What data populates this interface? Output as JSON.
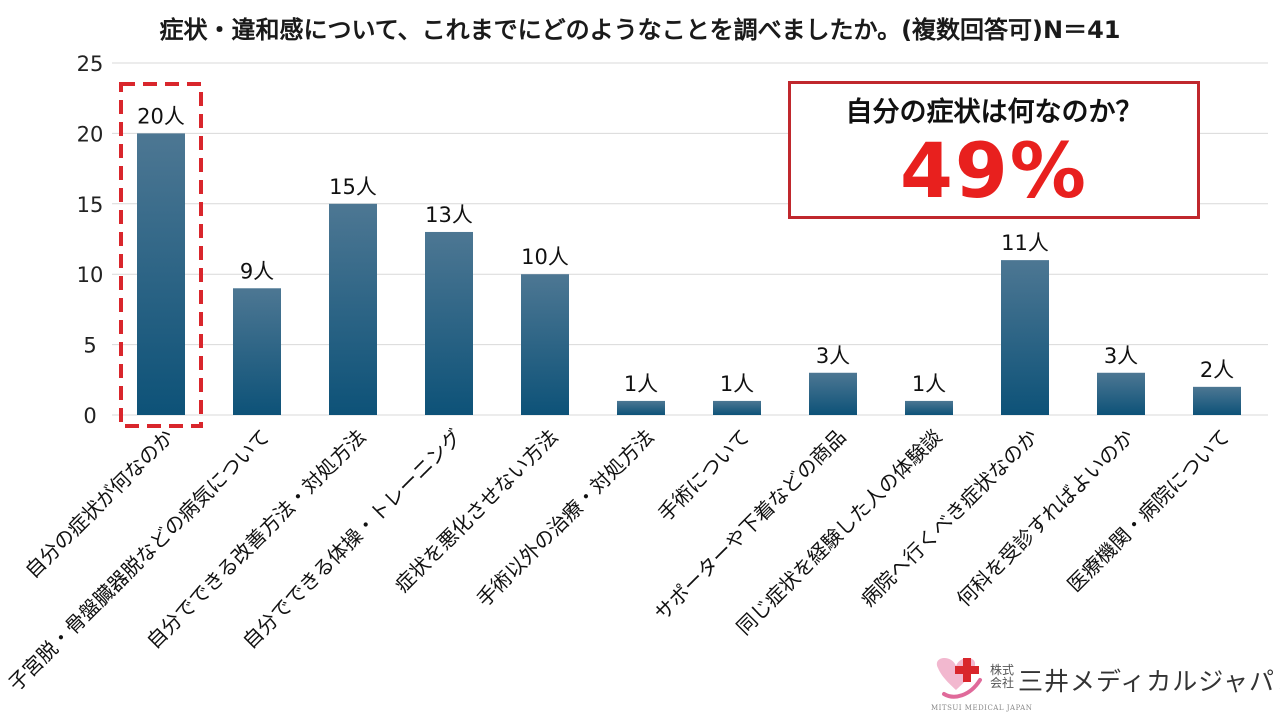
{
  "chart_data": {
    "type": "bar",
    "title": "症状・違和感について、これまでにどのようなことを調べましたか。(複数回答可)N＝41",
    "categories": [
      "自分の症状が何なのか",
      "子宮脱・骨盤臓器脱などの病気について",
      "自分でできる改善方法・対処方法",
      "自分でできる体操・トレーニング",
      "症状を悪化させない方法",
      "手術以外の治療・対処方法",
      "手術について",
      "サポーターや下着などの商品",
      "同じ症状を経験した人の体験談",
      "病院へ行くべき症状なのか",
      "何科を受診すればよいのか",
      "医療機関・病院について"
    ],
    "values": [
      20,
      9,
      15,
      13,
      10,
      1,
      1,
      3,
      1,
      11,
      3,
      2
    ],
    "data_labels": [
      "20人",
      "9人",
      "15人",
      "13人",
      "10人",
      "1人",
      "1人",
      "3人",
      "1人",
      "11人",
      "3人",
      "2人"
    ],
    "y_ticks": [
      "0",
      "5",
      "10",
      "15",
      "20",
      "25"
    ],
    "ylim": [
      0,
      25
    ],
    "xlabel": "",
    "ylabel": "",
    "grid": true,
    "highlight_index": 0,
    "colors": {
      "bar_top": "#4d7793",
      "bar_bottom": "#0d5278",
      "highlight": "#d9262c",
      "grid": "#d9d9d9"
    }
  },
  "callout": {
    "question": "自分の症状は何なのか？",
    "percent": "49%",
    "border_color": "#c0282d",
    "percent_color": "#e8201e"
  },
  "logo": {
    "small_text": "株式会社",
    "name": "三井メディカルジャパン",
    "sub": "MITSUI MEDICAL JAPAN",
    "icon": "cross-heart-logo-icon"
  }
}
